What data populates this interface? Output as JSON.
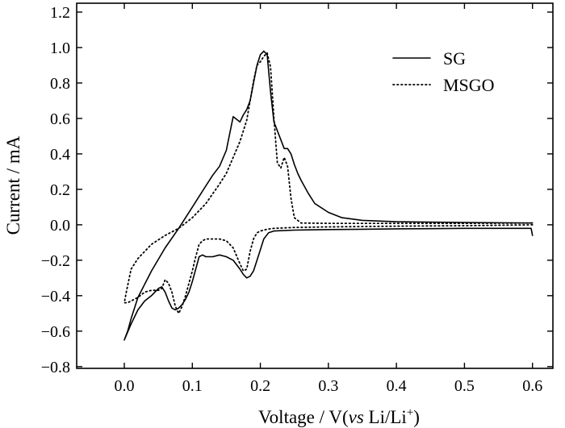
{
  "chart_data": {
    "type": "line",
    "xlabel": "Voltage / V(",
    "xlabel_italic": "vs",
    "xlabel_tail": " Li/Li",
    "xlabel_sup": "+",
    "xlabel_close": ")",
    "ylabel": "Current / mA",
    "xlim": [
      -0.07,
      0.63
    ],
    "ylim": [
      -0.81,
      1.25
    ],
    "xticks": [
      0.0,
      0.1,
      0.2,
      0.3,
      0.4,
      0.5,
      0.6
    ],
    "xtick_labels": [
      "0.0",
      "0.1",
      "0.2",
      "0.3",
      "0.4",
      "0.5",
      "0.6"
    ],
    "yticks": [
      1.2,
      1.0,
      0.8,
      0.6,
      0.4,
      0.2,
      0.0,
      -0.2,
      -0.4,
      -0.6,
      -0.8
    ],
    "ytick_labels": [
      "1.2",
      "1.0",
      "0.8",
      "0.6",
      "0.4",
      "0.2",
      "0.0",
      "−0.2",
      "−0.4",
      "−0.6",
      "−0.8"
    ],
    "grid": false,
    "legend_position": "top-right",
    "series": [
      {
        "name": "SG",
        "style": "solid",
        "color": "#000000",
        "x": [
          0.6,
          0.599,
          0.598,
          0.55,
          0.5,
          0.45,
          0.4,
          0.35,
          0.3,
          0.25,
          0.22,
          0.212,
          0.205,
          0.2,
          0.195,
          0.19,
          0.185,
          0.18,
          0.175,
          0.17,
          0.16,
          0.15,
          0.14,
          0.13,
          0.12,
          0.115,
          0.11,
          0.105,
          0.1,
          0.095,
          0.09,
          0.085,
          0.08,
          0.075,
          0.07,
          0.065,
          0.06,
          0.055,
          0.05,
          0.045,
          0.04,
          0.03,
          0.02,
          0.01,
          0.0,
          0.001,
          0.005,
          0.01,
          0.02,
          0.04,
          0.06,
          0.08,
          0.1,
          0.11,
          0.12,
          0.13,
          0.14,
          0.15,
          0.16,
          0.17,
          0.175,
          0.18,
          0.185,
          0.19,
          0.195,
          0.2,
          0.205,
          0.21,
          0.215,
          0.22,
          0.23,
          0.235,
          0.24,
          0.245,
          0.25,
          0.255,
          0.26,
          0.27,
          0.28,
          0.3,
          0.32,
          0.35,
          0.4,
          0.5,
          0.6
        ],
        "y": [
          -0.06,
          -0.04,
          -0.02,
          -0.02,
          -0.02,
          -0.022,
          -0.023,
          -0.025,
          -0.027,
          -0.03,
          -0.035,
          -0.045,
          -0.08,
          -0.14,
          -0.2,
          -0.26,
          -0.29,
          -0.3,
          -0.28,
          -0.25,
          -0.2,
          -0.18,
          -0.17,
          -0.18,
          -0.18,
          -0.17,
          -0.18,
          -0.25,
          -0.32,
          -0.38,
          -0.42,
          -0.45,
          -0.47,
          -0.48,
          -0.47,
          -0.43,
          -0.38,
          -0.35,
          -0.36,
          -0.38,
          -0.4,
          -0.43,
          -0.48,
          -0.56,
          -0.65,
          -0.64,
          -0.6,
          -0.53,
          -0.41,
          -0.26,
          -0.13,
          -0.02,
          0.1,
          0.16,
          0.22,
          0.28,
          0.33,
          0.42,
          0.61,
          0.58,
          0.62,
          0.65,
          0.7,
          0.8,
          0.9,
          0.96,
          0.98,
          0.96,
          0.75,
          0.58,
          0.48,
          0.43,
          0.43,
          0.4,
          0.34,
          0.29,
          0.25,
          0.18,
          0.12,
          0.07,
          0.04,
          0.025,
          0.017,
          0.013,
          0.01
        ]
      },
      {
        "name": "MSGO",
        "style": "dotted",
        "color": "#000000",
        "x": [
          0.6,
          0.5,
          0.4,
          0.3,
          0.25,
          0.22,
          0.21,
          0.2,
          0.195,
          0.19,
          0.185,
          0.18,
          0.175,
          0.17,
          0.16,
          0.15,
          0.14,
          0.13,
          0.12,
          0.115,
          0.11,
          0.105,
          0.1,
          0.095,
          0.09,
          0.085,
          0.08,
          0.075,
          0.07,
          0.065,
          0.06,
          0.055,
          0.05,
          0.04,
          0.03,
          0.02,
          0.01,
          0.005,
          0.0,
          0.003,
          0.01,
          0.02,
          0.04,
          0.06,
          0.08,
          0.1,
          0.12,
          0.14,
          0.15,
          0.16,
          0.17,
          0.18,
          0.19,
          0.195,
          0.2,
          0.205,
          0.21,
          0.215,
          0.22,
          0.225,
          0.23,
          0.235,
          0.24,
          0.245,
          0.25,
          0.26,
          0.3,
          0.4,
          0.5,
          0.6
        ],
        "y": [
          0.0,
          -0.005,
          -0.008,
          -0.012,
          -0.015,
          -0.02,
          -0.025,
          -0.035,
          -0.045,
          -0.08,
          -0.15,
          -0.25,
          -0.26,
          -0.22,
          -0.13,
          -0.09,
          -0.08,
          -0.08,
          -0.08,
          -0.09,
          -0.11,
          -0.18,
          -0.26,
          -0.33,
          -0.4,
          -0.46,
          -0.5,
          -0.46,
          -0.38,
          -0.33,
          -0.31,
          -0.36,
          -0.37,
          -0.37,
          -0.38,
          -0.41,
          -0.43,
          -0.44,
          -0.44,
          -0.38,
          -0.25,
          -0.19,
          -0.11,
          -0.06,
          -0.02,
          0.04,
          0.12,
          0.23,
          0.29,
          0.38,
          0.47,
          0.59,
          0.81,
          0.9,
          0.92,
          0.95,
          0.97,
          0.89,
          0.6,
          0.35,
          0.32,
          0.38,
          0.33,
          0.15,
          0.04,
          0.01,
          0.008,
          0.008,
          0.008,
          0.01
        ]
      }
    ]
  }
}
